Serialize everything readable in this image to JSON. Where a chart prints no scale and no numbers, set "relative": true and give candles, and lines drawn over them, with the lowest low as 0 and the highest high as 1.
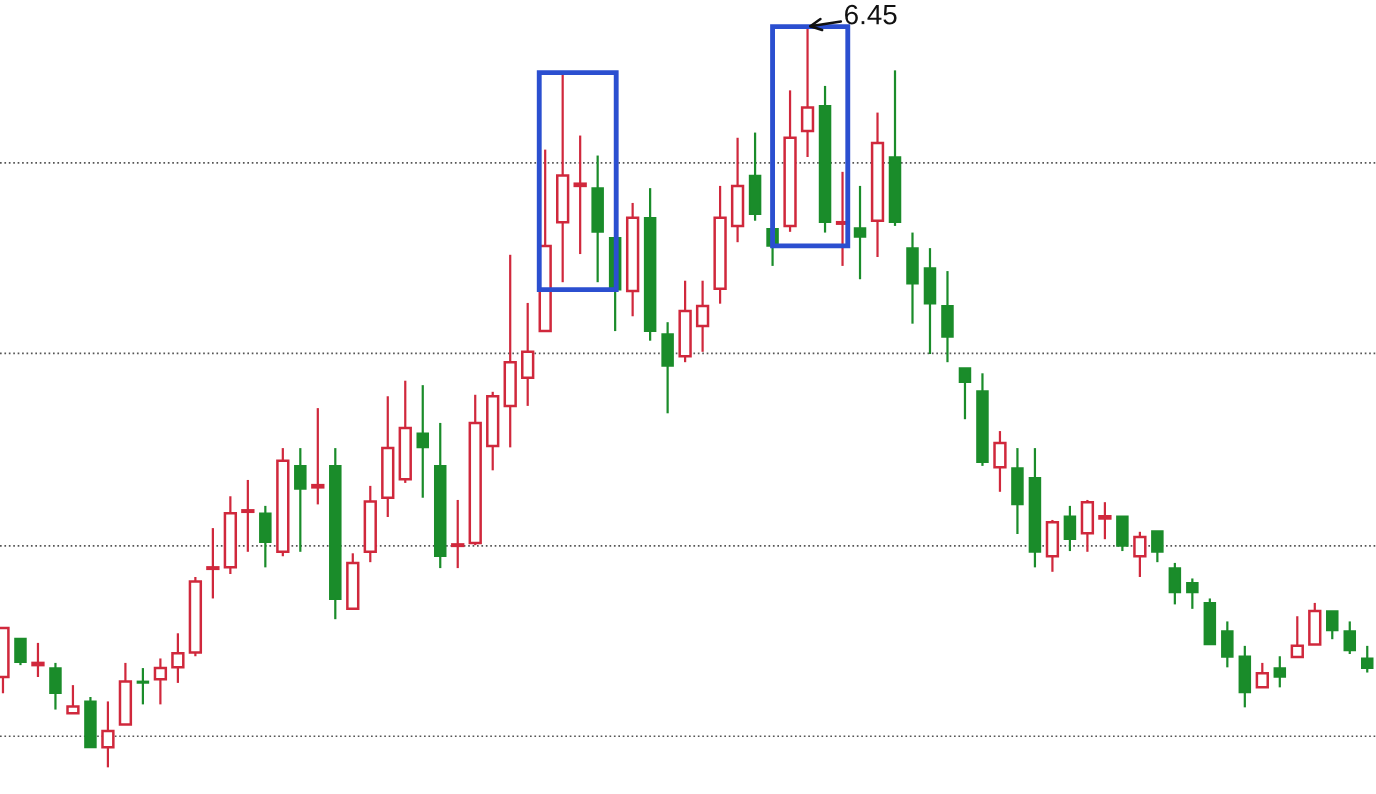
{
  "chart_data": {
    "type": "candlestick",
    "relative": true,
    "colors": [
      "#d0283c",
      "#1a8c2a",
      "#d0283c",
      "#1a8c2a",
      "#d0283c",
      "#1a8c2a",
      "#d0283c",
      "#d0283c",
      "#1a8c2a",
      "#d0283c",
      "#d0283c",
      "#d0283c",
      "#d0283c",
      "#d0283c",
      "#d0283c",
      "#1a8c2a",
      "#d0283c",
      "#1a8c2a",
      "#d0283c",
      "#1a8c2a",
      "#d0283c",
      "#d0283c",
      "#d0283c",
      "#d0283c",
      "#1a8c2a",
      "#1a8c2a",
      "#d0283c",
      "#d0283c",
      "#d0283c",
      "#d0283c",
      "#d0283c",
      "#d0283c",
      "#d0283c",
      "#d0283c",
      "#1a8c2a",
      "#1a8c2a",
      "#d0283c",
      "#1a8c2a",
      "#1a8c2a",
      "#d0283c",
      "#d0283c",
      "#d0283c",
      "#d0283c",
      "#1a8c2a",
      "#1a8c2a",
      "#d0283c",
      "#d0283c",
      "#1a8c2a",
      "#d0283c",
      "#1a8c2a",
      "#d0283c",
      "#1a8c2a",
      "#1a8c2a",
      "#1a8c2a",
      "#1a8c2a",
      "#1a8c2a",
      "#1a8c2a",
      "#d0283c",
      "#1a8c2a",
      "#1a8c2a",
      "#d0283c",
      "#1a8c2a",
      "#d0283c",
      "#d0283c",
      "#1a8c2a",
      "#d0283c",
      "#1a8c2a",
      "#1a8c2a",
      "#1a8c2a",
      "#1a8c2a",
      "#1a8c2a",
      "#1a8c2a",
      "#d0283c",
      "#1a8c2a",
      "#d0283c",
      "#d0283c",
      "#1a8c2a",
      "#1a8c2a",
      "#1a8c2a"
    ],
    "categories": [
      null,
      null,
      null,
      null,
      null,
      null,
      null,
      null,
      null,
      null,
      null,
      null,
      null,
      null,
      null,
      null,
      null,
      null,
      null,
      null,
      null,
      null,
      null,
      null,
      null,
      null,
      null,
      null,
      null,
      null,
      null,
      null,
      null,
      null,
      null,
      null,
      null,
      null,
      null,
      null,
      null,
      null,
      null,
      null,
      null,
      null,
      null,
      null,
      null,
      null,
      null,
      null,
      null,
      null,
      null,
      null,
      null,
      null,
      null,
      null,
      null,
      null,
      null,
      null,
      null,
      null,
      null,
      null,
      null,
      null,
      null,
      null,
      null,
      null,
      null,
      null,
      null,
      null,
      null
    ],
    "ohlc": [
      [
        0.122,
        0.188,
        0.1,
        0.188
      ],
      [
        0.174,
        0.174,
        0.138,
        0.142
      ],
      [
        0.138,
        0.168,
        0.122,
        0.141
      ],
      [
        0.134,
        0.141,
        0.078,
        0.1
      ],
      [
        0.073,
        0.111,
        0.073,
        0.082
      ],
      [
        0.089,
        0.095,
        0.027,
        0.027
      ],
      [
        0.027,
        0.089,
        0,
        0.049
      ],
      [
        0.058,
        0.141,
        0.058,
        0.116
      ],
      [
        0.116,
        0.134,
        0.085,
        0.114
      ],
      [
        0.119,
        0.147,
        0.085,
        0.134
      ],
      [
        0.135,
        0.181,
        0.114,
        0.154
      ],
      [
        0.155,
        0.257,
        0.15,
        0.251
      ],
      [
        0.268,
        0.323,
        0.228,
        0.27
      ],
      [
        0.27,
        0.366,
        0.261,
        0.343
      ],
      [
        0.345,
        0.388,
        0.291,
        0.347
      ],
      [
        0.343,
        0.353,
        0.27,
        0.304
      ],
      [
        0.291,
        0.431,
        0.285,
        0.414
      ],
      [
        0.407,
        0.431,
        0.291,
        0.376
      ],
      [
        0.378,
        0.485,
        0.355,
        0.381
      ],
      [
        0.407,
        0.431,
        0.2,
        0.227
      ],
      [
        0.214,
        0.289,
        0.214,
        0.276
      ],
      [
        0.291,
        0.38,
        0.277,
        0.359
      ],
      [
        0.364,
        0.501,
        0.338,
        0.431
      ],
      [
        0.389,
        0.522,
        0.384,
        0.458
      ],
      [
        0.451,
        0.516,
        0.364,
        0.432
      ],
      [
        0.407,
        0.465,
        0.269,
        0.285
      ],
      [
        0.299,
        0.361,
        0.269,
        0.301
      ],
      [
        0.303,
        0.503,
        0.3,
        0.465
      ],
      [
        0.434,
        0.507,
        0.401,
        0.501
      ],
      [
        0.488,
        0.692,
        0.432,
        0.547
      ],
      [
        0.526,
        0.627,
        0.488,
        0.561
      ],
      [
        0.589,
        0.834,
        0.589,
        0.704
      ],
      [
        0.736,
        0.938,
        0.655,
        0.799
      ],
      [
        0.785,
        0.853,
        0.693,
        0.788
      ],
      [
        0.782,
        0.826,
        0.655,
        0.723
      ],
      [
        0.715,
        0.715,
        0.589,
        0.645
      ],
      [
        0.643,
        0.762,
        0.609,
        0.742
      ],
      [
        0.742,
        0.782,
        0.576,
        0.589
      ],
      [
        0.585,
        0.601,
        0.478,
        0.542
      ],
      [
        0.555,
        0.657,
        0.547,
        0.616
      ],
      [
        0.596,
        0.657,
        0.561,
        0.623
      ],
      [
        0.646,
        0.785,
        0.626,
        0.742
      ],
      [
        0.731,
        0.85,
        0.709,
        0.785
      ],
      [
        0.799,
        0.857,
        0.738,
        0.747
      ],
      [
        0.727,
        0.727,
        0.677,
        0.704
      ],
      [
        0.731,
        0.914,
        0.723,
        0.85
      ],
      [
        0.859,
        1,
        0.824,
        0.891
      ],
      [
        0.893,
        0.92,
        0.722,
        0.736
      ],
      [
        0.734,
        0.804,
        0.677,
        0.736
      ],
      [
        0.728,
        0.785,
        0.659,
        0.716
      ],
      [
        0.738,
        0.884,
        0.689,
        0.843
      ],
      [
        0.824,
        0.941,
        0.731,
        0.736
      ],
      [
        0.701,
        0.722,
        0.599,
        0.653
      ],
      [
        0.674,
        0.701,
        0.558,
        0.626
      ],
      [
        0.623,
        0.67,
        0.547,
        0.581
      ],
      [
        0.539,
        0.539,
        0.47,
        0.52
      ],
      [
        0.508,
        0.532,
        0.407,
        0.412
      ],
      [
        0.405,
        0.454,
        0.372,
        0.438
      ],
      [
        0.404,
        0.431,
        0.315,
        0.355
      ],
      [
        0.391,
        0.431,
        0.27,
        0.291
      ],
      [
        0.285,
        0.334,
        0.264,
        0.331
      ],
      [
        0.339,
        0.353,
        0.292,
        0.308
      ],
      [
        0.316,
        0.361,
        0.291,
        0.358
      ],
      [
        0.336,
        0.358,
        0.308,
        0.339
      ],
      [
        0.339,
        0.339,
        0.292,
        0.299
      ],
      [
        0.285,
        0.318,
        0.257,
        0.311
      ],
      [
        0.319,
        0.319,
        0.277,
        0.291
      ],
      [
        0.269,
        0.276,
        0.22,
        0.236
      ],
      [
        0.249,
        0.255,
        0.214,
        0.236
      ],
      [
        0.222,
        0.228,
        0.166,
        0.166
      ],
      [
        0.184,
        0.197,
        0.135,
        0.149
      ],
      [
        0.15,
        0.164,
        0.081,
        0.101
      ],
      [
        0.108,
        0.141,
        0.108,
        0.127
      ],
      [
        0.134,
        0.15,
        0.108,
        0.122
      ],
      [
        0.149,
        0.204,
        0.149,
        0.164
      ],
      [
        0.166,
        0.222,
        0.166,
        0.211
      ],
      [
        0.211,
        0.211,
        0.173,
        0.185
      ],
      [
        0.184,
        0.197,
        0.153,
        0.158
      ],
      [
        0.147,
        0.164,
        0.128,
        0.134
      ]
    ],
    "ref_lines": [
      {
        "axis": "y",
        "value": 0.816,
        "color": "#555555",
        "line_style": "dotted"
      },
      {
        "axis": "y",
        "value": 0.559,
        "color": "#555555",
        "line_style": "dotted"
      },
      {
        "axis": "y",
        "value": 0.299,
        "color": "#555555",
        "line_style": "dotted"
      },
      {
        "axis": "y",
        "value": 0.042,
        "color": "#555555",
        "line_style": "dotted"
      }
    ],
    "annotations": [
      "6.45"
    ]
  }
}
